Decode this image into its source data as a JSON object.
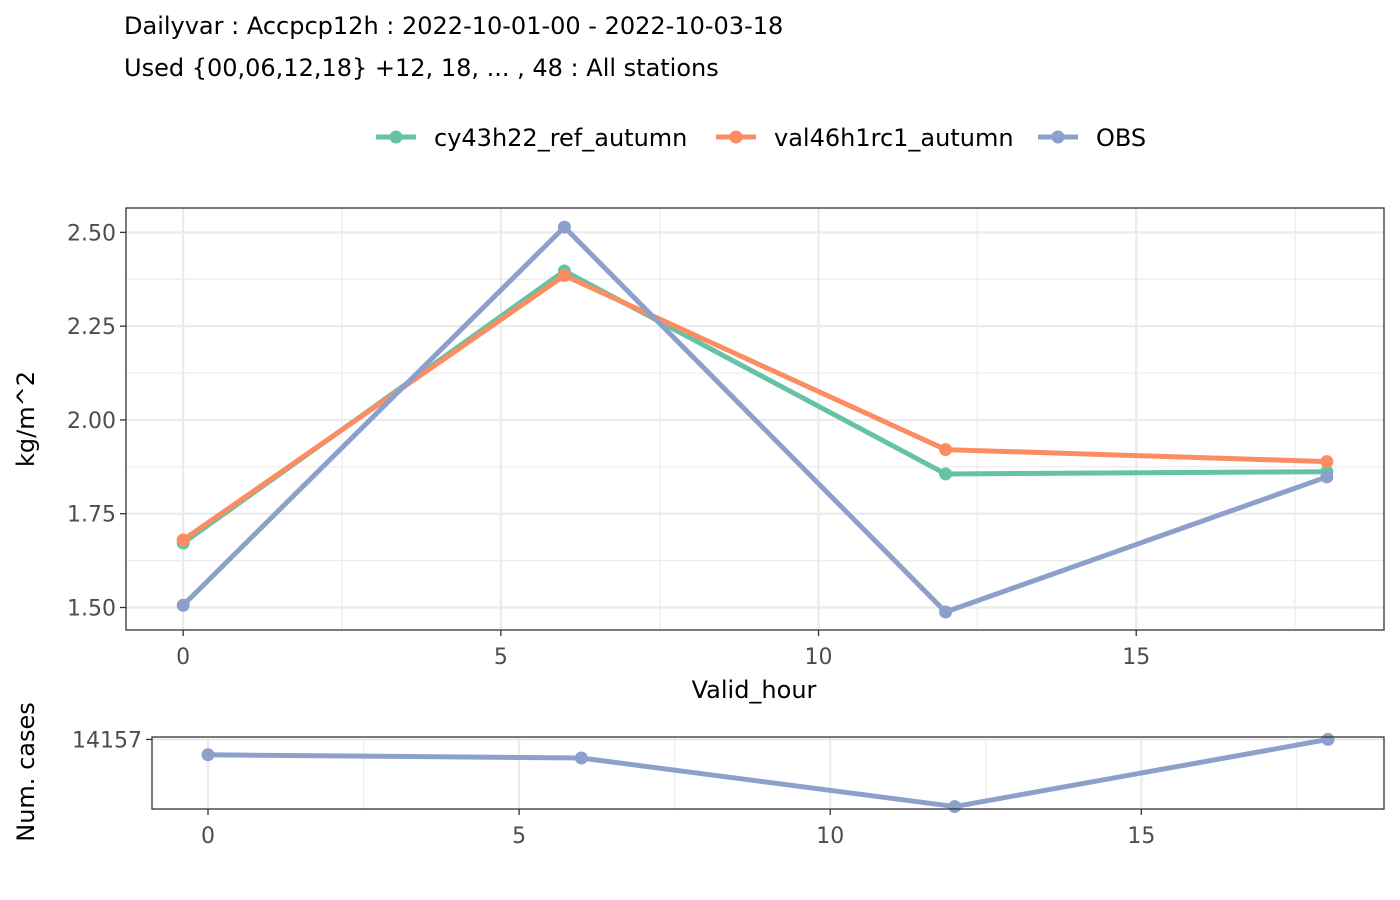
{
  "chart_data": [
    {
      "type": "line",
      "title": "Dailyvar : Accpcp12h : 2022-10-01-00 - 2022-10-03-18",
      "subtitle": "Used {00,06,12,18} +12, 18, ... , 48 : All stations",
      "xlabel": "Valid_hour",
      "ylabel": "kg/m^2",
      "xlim": [
        -0.9,
        18.9
      ],
      "ylim": [
        1.44,
        2.565
      ],
      "xticks": [
        0,
        5,
        10,
        15
      ],
      "xtick_labels": [
        "0",
        "5",
        "10",
        "15"
      ],
      "yticks": [
        1.5,
        1.75,
        2.0,
        2.25,
        2.5
      ],
      "ytick_labels": [
        "1.50",
        "1.75",
        "2.00",
        "2.25",
        "2.50"
      ],
      "grid": true,
      "legend_position": "top",
      "series": [
        {
          "name": "cy43h22_ref_autumn",
          "color": "#66c2a5",
          "x": [
            0,
            6,
            12,
            18
          ],
          "y": [
            1.672,
            2.397,
            1.856,
            1.862
          ]
        },
        {
          "name": "val46h1rc1_autumn",
          "color": "#fc8d62",
          "x": [
            0,
            6,
            12,
            18
          ],
          "y": [
            1.68,
            2.385,
            1.921,
            1.889
          ]
        },
        {
          "name": "OBS",
          "color": "#8da0cb",
          "x": [
            0,
            6,
            12,
            18
          ],
          "y": [
            1.506,
            2.514,
            1.488,
            1.848
          ]
        }
      ]
    },
    {
      "type": "line",
      "ylabel": "Num. cases",
      "xlim": [
        -0.9,
        18.9
      ],
      "ylim": [
        14071,
        14160
      ],
      "xticks": [
        0,
        5,
        10,
        15
      ],
      "xtick_labels": [
        "0",
        "5",
        "10",
        "15"
      ],
      "yticks": [
        14157
      ],
      "ytick_labels": [
        "14157"
      ],
      "grid": true,
      "series": [
        {
          "color": "#8da0cb",
          "x": [
            0,
            6,
            12,
            18
          ],
          "y": [
            14138,
            14134,
            14074,
            14157
          ]
        }
      ]
    }
  ]
}
